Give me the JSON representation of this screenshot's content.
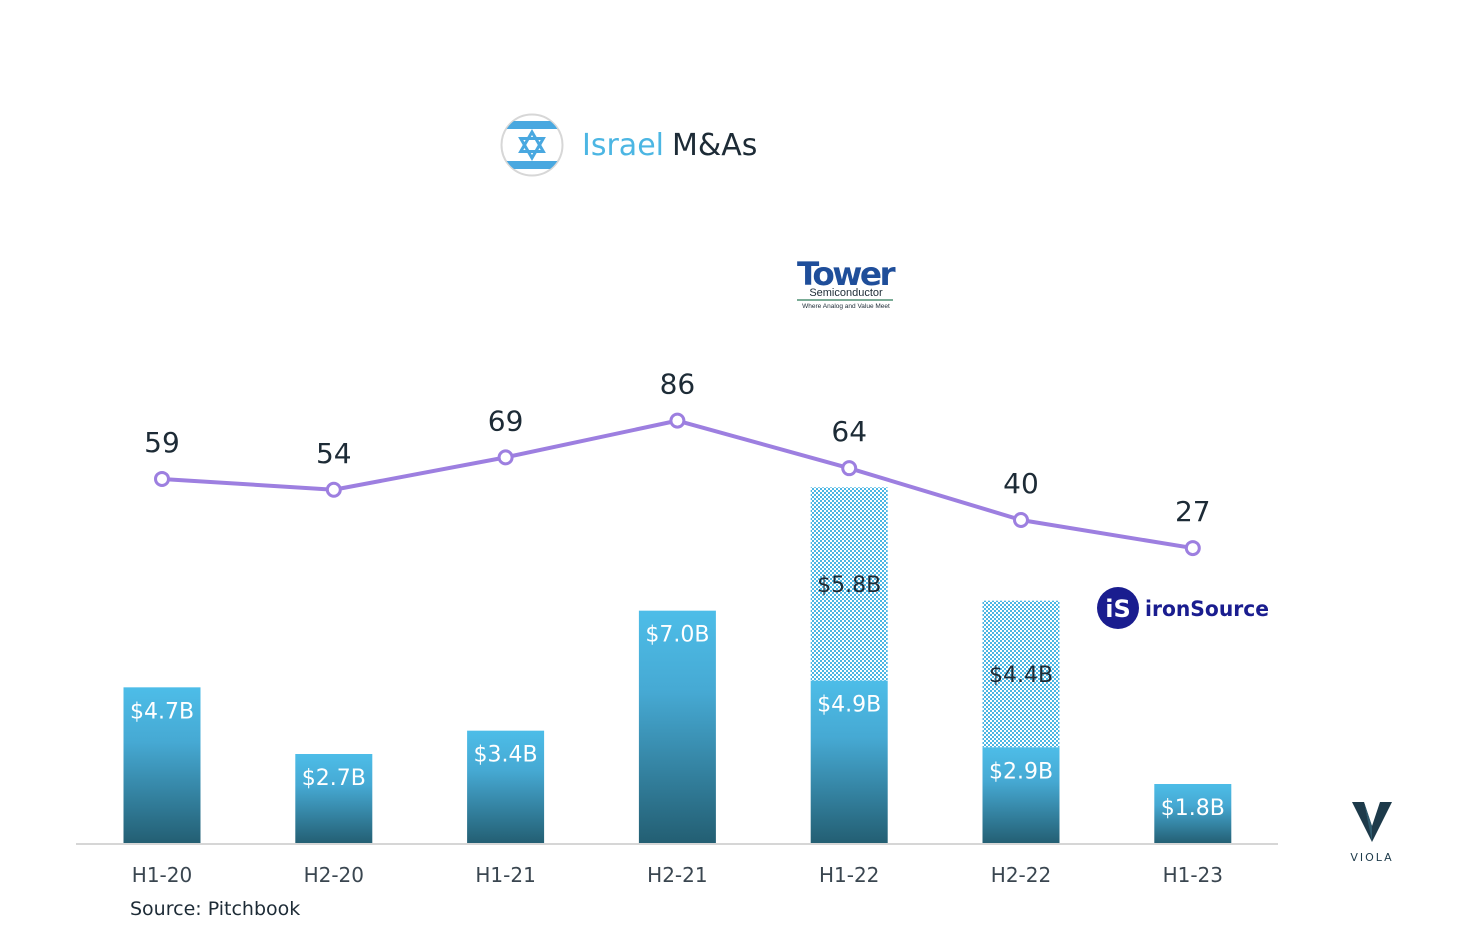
{
  "header": {
    "flag_icon": "israel-flag-icon",
    "title_accent": "Israel",
    "title_main": "M&As"
  },
  "footer": {
    "source": "Source: Pitchbook"
  },
  "brand": {
    "name": "VIOLA",
    "icon": "viola-v-logo-icon"
  },
  "logos": {
    "tower": {
      "name": "Tower",
      "sub": "Semiconductor",
      "tagline": "Where Analog and Value Meet"
    },
    "ironsource": {
      "name": "ironSource",
      "mark": "iS"
    }
  },
  "colors": {
    "bar_top": "#4dbde8",
    "bar_bottom": "#235e72",
    "line": "#9d7fe0",
    "hatch": "#4cb6e3",
    "text_dark": "#1d2b36"
  },
  "chart_data": {
    "type": "bar",
    "categories": [
      "H1-20",
      "H2-20",
      "H1-21",
      "H2-21",
      "H1-22",
      "H2-22",
      "H1-23"
    ],
    "series": [
      {
        "values": [
          4.7,
          2.7,
          3.4,
          7.0,
          4.9,
          2.9,
          1.8
        ],
        "labels": [
          "$4.7B",
          "$2.7B",
          "$3.4B",
          "$7.0B",
          "$4.9B",
          "$2.9B",
          "$1.8B"
        ]
      },
      {
        "values": [
          null,
          null,
          null,
          null,
          5.8,
          4.4,
          null
        ],
        "labels": [
          "",
          "",
          "",
          "",
          "$5.8B",
          "$4.4B",
          ""
        ]
      },
      {
        "type": "line",
        "values": [
          59,
          54,
          69,
          86,
          64,
          40,
          27
        ]
      }
    ],
    "ylim": [
      0,
      16.2
    ],
    "ylim_line": [
      -110,
      140
    ],
    "grid": false
  }
}
